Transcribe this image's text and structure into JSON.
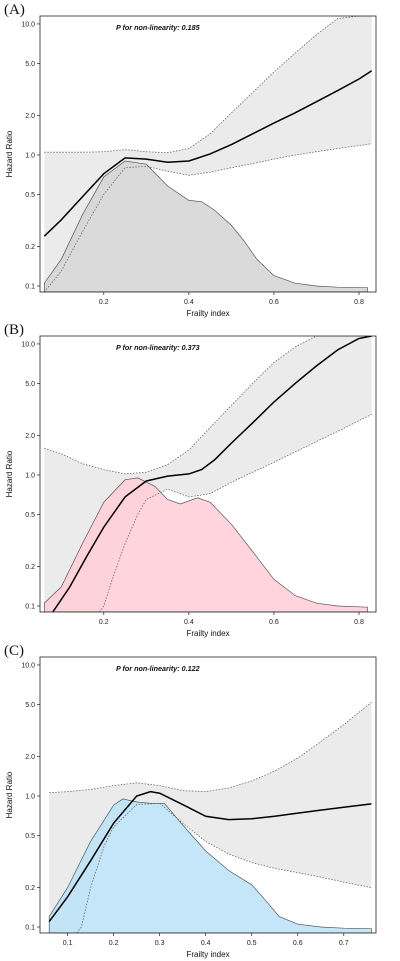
{
  "chart_data": [
    {
      "type": "line",
      "panel_label": "(A)",
      "annotation": "P for non-linearity: 0.185",
      "xlabel": "Frailty index",
      "ylabel": "Hazard Ratio",
      "xlim": [
        0.05,
        0.84
      ],
      "ylim": [
        0.09,
        11.5
      ],
      "y_scale": "log",
      "x_ticks": [
        0.2,
        0.4,
        0.6,
        0.8
      ],
      "x_tick_labels": [
        "0.2",
        "0.4",
        "0.6",
        "0.8"
      ],
      "y_ticks": [
        0.1,
        0.2,
        0.5,
        1.0,
        2.0,
        5.0,
        10.0
      ],
      "y_tick_labels": [
        "0.1",
        "0.2",
        "0.5",
        "1.0",
        "2.0",
        "5.0",
        "10.0"
      ],
      "fill_color": "#d6d6d6",
      "series": [
        {
          "role": "hazard_ratio",
          "x": [
            0.06,
            0.1,
            0.15,
            0.2,
            0.25,
            0.3,
            0.35,
            0.4,
            0.45,
            0.5,
            0.55,
            0.6,
            0.65,
            0.7,
            0.75,
            0.8,
            0.83
          ],
          "values": [
            0.24,
            0.32,
            0.48,
            0.72,
            0.95,
            0.93,
            0.88,
            0.9,
            1.02,
            1.2,
            1.45,
            1.75,
            2.1,
            2.55,
            3.1,
            3.8,
            4.4
          ]
        },
        {
          "role": "upper_ci",
          "x": [
            0.06,
            0.1,
            0.15,
            0.2,
            0.25,
            0.3,
            0.35,
            0.4,
            0.45,
            0.5,
            0.55,
            0.6,
            0.65,
            0.7,
            0.75,
            0.8,
            0.83
          ],
          "values": [
            1.05,
            1.05,
            1.05,
            1.06,
            1.1,
            1.06,
            1.04,
            1.12,
            1.45,
            2.1,
            3.0,
            4.3,
            6.0,
            8.3,
            11.0,
            11.5,
            11.5
          ]
        },
        {
          "role": "lower_ci",
          "x": [
            0.06,
            0.1,
            0.15,
            0.2,
            0.25,
            0.3,
            0.35,
            0.4,
            0.45,
            0.5,
            0.55,
            0.6,
            0.65,
            0.7,
            0.75,
            0.8,
            0.83
          ],
          "values": [
            0.09,
            0.13,
            0.26,
            0.5,
            0.8,
            0.82,
            0.75,
            0.7,
            0.74,
            0.8,
            0.86,
            0.93,
            1.0,
            1.06,
            1.12,
            1.18,
            1.22
          ]
        },
        {
          "role": "distribution",
          "x": [
            0.06,
            0.1,
            0.15,
            0.2,
            0.25,
            0.3,
            0.35,
            0.4,
            0.43,
            0.46,
            0.5,
            0.53,
            0.56,
            0.6,
            0.65,
            0.7,
            0.75,
            0.82
          ],
          "values": [
            0.105,
            0.16,
            0.35,
            0.68,
            0.9,
            0.85,
            0.58,
            0.45,
            0.44,
            0.38,
            0.29,
            0.22,
            0.16,
            0.12,
            0.105,
            0.1,
            0.098,
            0.097
          ]
        }
      ]
    },
    {
      "type": "line",
      "panel_label": "(B)",
      "annotation": "P for non-linearity: 0.373",
      "xlabel": "Frailty index",
      "ylabel": "Hazard Ratio",
      "xlim": [
        0.05,
        0.84
      ],
      "ylim": [
        0.09,
        11.5
      ],
      "y_scale": "log",
      "x_ticks": [
        0.2,
        0.4,
        0.6,
        0.8
      ],
      "x_tick_labels": [
        "0.2",
        "0.4",
        "0.6",
        "0.8"
      ],
      "y_ticks": [
        0.1,
        0.2,
        0.5,
        1.0,
        2.0,
        5.0,
        10.0
      ],
      "y_tick_labels": [
        "0.1",
        "0.2",
        "0.5",
        "1.0",
        "2.0",
        "5.0",
        "10.0"
      ],
      "fill_color": "#ffcfd8",
      "series": [
        {
          "role": "hazard_ratio",
          "x": [
            0.08,
            0.12,
            0.16,
            0.2,
            0.25,
            0.3,
            0.35,
            0.4,
            0.43,
            0.46,
            0.5,
            0.55,
            0.6,
            0.65,
            0.7,
            0.75,
            0.8,
            0.83
          ],
          "values": [
            0.09,
            0.14,
            0.24,
            0.4,
            0.68,
            0.9,
            0.98,
            1.02,
            1.1,
            1.3,
            1.75,
            2.5,
            3.6,
            5.0,
            6.8,
            9.0,
            11.0,
            11.5
          ]
        },
        {
          "role": "upper_ci",
          "x": [
            0.06,
            0.1,
            0.15,
            0.2,
            0.25,
            0.3,
            0.35,
            0.4,
            0.45,
            0.5,
            0.55,
            0.6,
            0.65,
            0.7,
            0.75,
            0.8,
            0.83
          ],
          "values": [
            1.6,
            1.45,
            1.22,
            1.1,
            1.02,
            1.05,
            1.2,
            1.55,
            2.3,
            3.4,
            5.0,
            7.2,
            9.5,
            11.5,
            11.5,
            11.5,
            11.5
          ]
        },
        {
          "role": "lower_ci",
          "x": [
            0.19,
            0.2,
            0.22,
            0.25,
            0.28,
            0.3,
            0.35,
            0.4,
            0.45,
            0.5,
            0.55,
            0.6,
            0.65,
            0.7,
            0.75,
            0.8,
            0.83
          ],
          "values": [
            0.09,
            0.1,
            0.16,
            0.3,
            0.5,
            0.65,
            0.78,
            0.68,
            0.72,
            0.88,
            1.05,
            1.25,
            1.5,
            1.8,
            2.15,
            2.6,
            2.9
          ]
        },
        {
          "role": "distribution",
          "x": [
            0.06,
            0.1,
            0.15,
            0.2,
            0.25,
            0.28,
            0.32,
            0.35,
            0.38,
            0.42,
            0.45,
            0.5,
            0.55,
            0.6,
            0.65,
            0.7,
            0.75,
            0.82
          ],
          "values": [
            0.105,
            0.14,
            0.3,
            0.62,
            0.92,
            0.95,
            0.82,
            0.65,
            0.6,
            0.67,
            0.62,
            0.42,
            0.26,
            0.16,
            0.12,
            0.105,
            0.1,
            0.098
          ]
        }
      ]
    },
    {
      "type": "line",
      "panel_label": "(C)",
      "annotation": "P for non-linearity: 0.122",
      "xlabel": "Frailty index",
      "ylabel": "Hazard Ratio",
      "xlim": [
        0.04,
        0.77
      ],
      "ylim": [
        0.09,
        11.5
      ],
      "y_scale": "log",
      "x_ticks": [
        0.1,
        0.2,
        0.3,
        0.4,
        0.5,
        0.6,
        0.7
      ],
      "x_tick_labels": [
        "0.1",
        "0.2",
        "0.3",
        "0.4",
        "0.5",
        "0.6",
        "0.7"
      ],
      "y_ticks": [
        0.1,
        0.2,
        0.5,
        1.0,
        2.0,
        5.0,
        10.0
      ],
      "y_tick_labels": [
        "0.1",
        "0.2",
        "0.5",
        "1.0",
        "2.0",
        "5.0",
        "10.0"
      ],
      "fill_color": "#bfe2f8",
      "series": [
        {
          "role": "hazard_ratio",
          "x": [
            0.06,
            0.1,
            0.15,
            0.2,
            0.25,
            0.28,
            0.3,
            0.35,
            0.4,
            0.45,
            0.5,
            0.55,
            0.6,
            0.65,
            0.7,
            0.76
          ],
          "values": [
            0.11,
            0.17,
            0.32,
            0.62,
            1.0,
            1.08,
            1.05,
            0.86,
            0.7,
            0.66,
            0.67,
            0.7,
            0.74,
            0.78,
            0.82,
            0.87
          ]
        },
        {
          "role": "upper_ci",
          "x": [
            0.06,
            0.1,
            0.15,
            0.2,
            0.25,
            0.3,
            0.35,
            0.4,
            0.45,
            0.5,
            0.55,
            0.6,
            0.65,
            0.7,
            0.76
          ],
          "values": [
            1.06,
            1.08,
            1.12,
            1.2,
            1.26,
            1.2,
            1.1,
            1.08,
            1.15,
            1.3,
            1.55,
            1.95,
            2.6,
            3.5,
            5.2
          ]
        },
        {
          "role": "lower_ci",
          "x": [
            0.12,
            0.13,
            0.15,
            0.18,
            0.2,
            0.25,
            0.3,
            0.35,
            0.4,
            0.45,
            0.5,
            0.55,
            0.6,
            0.65,
            0.7,
            0.76
          ],
          "values": [
            0.09,
            0.1,
            0.2,
            0.42,
            0.58,
            0.86,
            0.88,
            0.62,
            0.45,
            0.36,
            0.31,
            0.28,
            0.26,
            0.24,
            0.22,
            0.2
          ]
        },
        {
          "role": "distribution",
          "x": [
            0.06,
            0.1,
            0.15,
            0.2,
            0.22,
            0.25,
            0.28,
            0.31,
            0.35,
            0.4,
            0.45,
            0.5,
            0.53,
            0.56,
            0.6,
            0.65,
            0.7,
            0.76
          ],
          "values": [
            0.12,
            0.2,
            0.45,
            0.85,
            0.95,
            0.9,
            0.88,
            0.88,
            0.6,
            0.38,
            0.27,
            0.21,
            0.16,
            0.12,
            0.105,
            0.1,
            0.098,
            0.097
          ]
        }
      ]
    }
  ]
}
